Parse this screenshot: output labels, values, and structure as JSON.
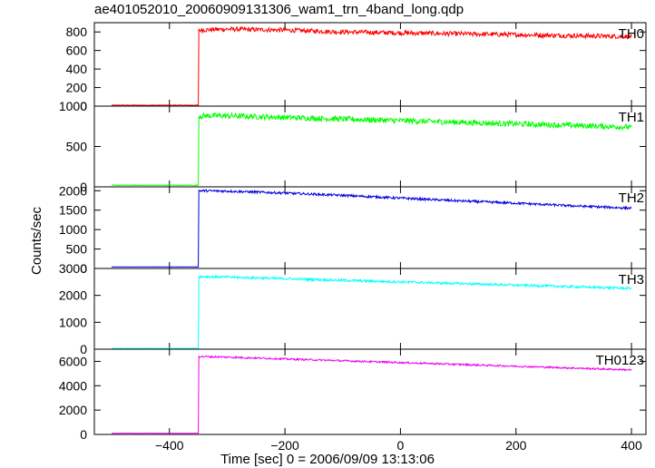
{
  "title": "ae401052010_20060909131306_wam1_trn_4band_long.qdp",
  "xlabel": "Time [sec] 0 = 2006/09/09 13:13:06",
  "ylabel": "Counts/sec",
  "chart_data": {
    "type": "line",
    "title": "ae401052010_20060909131306_wam1_trn_4band_long.qdp",
    "xlabel": "Time [sec] 0 = 2006/09/09 13:13:06",
    "ylabel": "Counts/sec",
    "xlim": [
      -530,
      425
    ],
    "x_ticks": [
      -400,
      -200,
      0,
      200,
      400
    ],
    "grid": false,
    "panels": [
      {
        "name": "TH0",
        "color": "#ff0000",
        "ylim": [
          0,
          900
        ],
        "y_ticks": [
          0,
          200,
          400,
          600,
          800
        ],
        "x": [
          -500,
          -350,
          -349,
          -300,
          -200,
          -100,
          0,
          100,
          200,
          300,
          400
        ],
        "y": [
          10,
          10,
          820,
          830,
          820,
          800,
          790,
          780,
          770,
          760,
          750
        ],
        "noise": 25
      },
      {
        "name": "TH1",
        "color": "#00ff00",
        "ylim": [
          0,
          1000
        ],
        "y_ticks": [
          0,
          500,
          1000
        ],
        "x": [
          -500,
          -350,
          -349,
          -300,
          -200,
          -100,
          0,
          100,
          200,
          300,
          400
        ],
        "y": [
          20,
          20,
          880,
          880,
          860,
          840,
          820,
          800,
          780,
          760,
          740
        ],
        "noise": 35
      },
      {
        "name": "TH2",
        "color": "#0000dd",
        "ylim": [
          0,
          2100
        ],
        "y_ticks": [
          0,
          500,
          1000,
          1500,
          2000
        ],
        "x": [
          -500,
          -350,
          -349,
          -300,
          -200,
          -100,
          0,
          100,
          200,
          300,
          400
        ],
        "y": [
          40,
          40,
          2000,
          1990,
          1940,
          1880,
          1810,
          1740,
          1680,
          1610,
          1550
        ],
        "noise": 30
      },
      {
        "name": "TH3",
        "color": "#00ffff",
        "ylim": [
          0,
          3000
        ],
        "y_ticks": [
          0,
          1000,
          2000,
          3000
        ],
        "x": [
          -500,
          -350,
          -349,
          -300,
          -200,
          -100,
          0,
          100,
          200,
          300,
          400
        ],
        "y": [
          30,
          30,
          2700,
          2680,
          2620,
          2560,
          2500,
          2440,
          2380,
          2320,
          2260
        ],
        "noise": 45
      },
      {
        "name": "TH0123",
        "color": "#ee00ee",
        "ylim": [
          0,
          7000
        ],
        "y_ticks": [
          0,
          2000,
          4000,
          6000
        ],
        "x": [
          -500,
          -350,
          -349,
          -300,
          -200,
          -100,
          0,
          100,
          200,
          300,
          400
        ],
        "y": [
          100,
          100,
          6400,
          6350,
          6200,
          6050,
          5900,
          5750,
          5600,
          5450,
          5300
        ],
        "noise": 70
      }
    ]
  }
}
